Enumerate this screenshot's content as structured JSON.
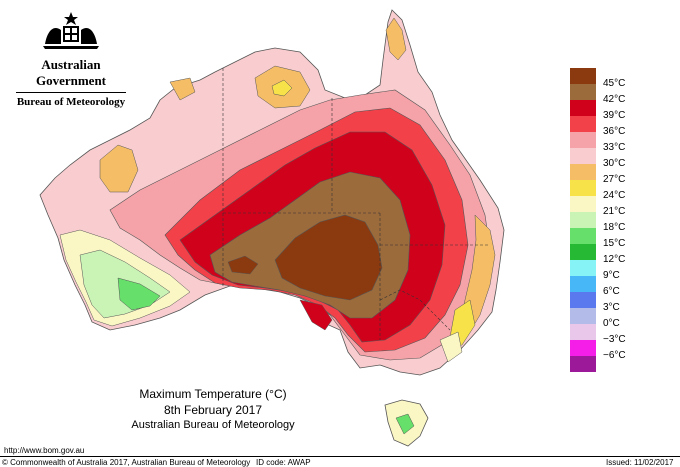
{
  "header": {
    "emblem_icon": "coat-of-arms-icon",
    "government": "Australian Government",
    "bureau": "Bureau of Meteorology"
  },
  "title": {
    "line1": "Maximum Temperature (°C)",
    "line2": "8th February 2017",
    "line3": "Australian Bureau of Meteorology"
  },
  "legend": [
    {
      "label": "45°C",
      "color": "#8b3a0f"
    },
    {
      "label": "42°C",
      "color": "#9c6b3c"
    },
    {
      "label": "39°C",
      "color": "#d0021b"
    },
    {
      "label": "36°C",
      "color": "#f3414a"
    },
    {
      "label": "33°C",
      "color": "#f5a3a8"
    },
    {
      "label": "30°C",
      "color": "#f9cdcf"
    },
    {
      "label": "27°C",
      "color": "#f5bd66"
    },
    {
      "label": "24°C",
      "color": "#f8e24a"
    },
    {
      "label": "21°C",
      "color": "#fbf7c4"
    },
    {
      "label": "18°C",
      "color": "#c9f4b6"
    },
    {
      "label": "15°C",
      "color": "#66e06a"
    },
    {
      "label": "12°C",
      "color": "#25b934"
    },
    {
      "label": "9°C",
      "color": "#86f3f7"
    },
    {
      "label": "6°C",
      "color": "#48b7f7"
    },
    {
      "label": "3°C",
      "color": "#5b79ef"
    },
    {
      "label": "0°C",
      "color": "#b3bbe9"
    },
    {
      "label": "−3°C",
      "color": "#e8c7ea"
    },
    {
      "label": "−6°C",
      "color": "#f51ee8"
    },
    {
      "label": "",
      "color": "#9c1a99"
    }
  ],
  "footer": {
    "url": "http://www.bom.gov.au",
    "copyright": "© Commonwealth of Australia 2017, Australian Bureau of Meteorology",
    "id_code": "ID code: AWAP",
    "issued": "Issued: 11/02/2017"
  }
}
